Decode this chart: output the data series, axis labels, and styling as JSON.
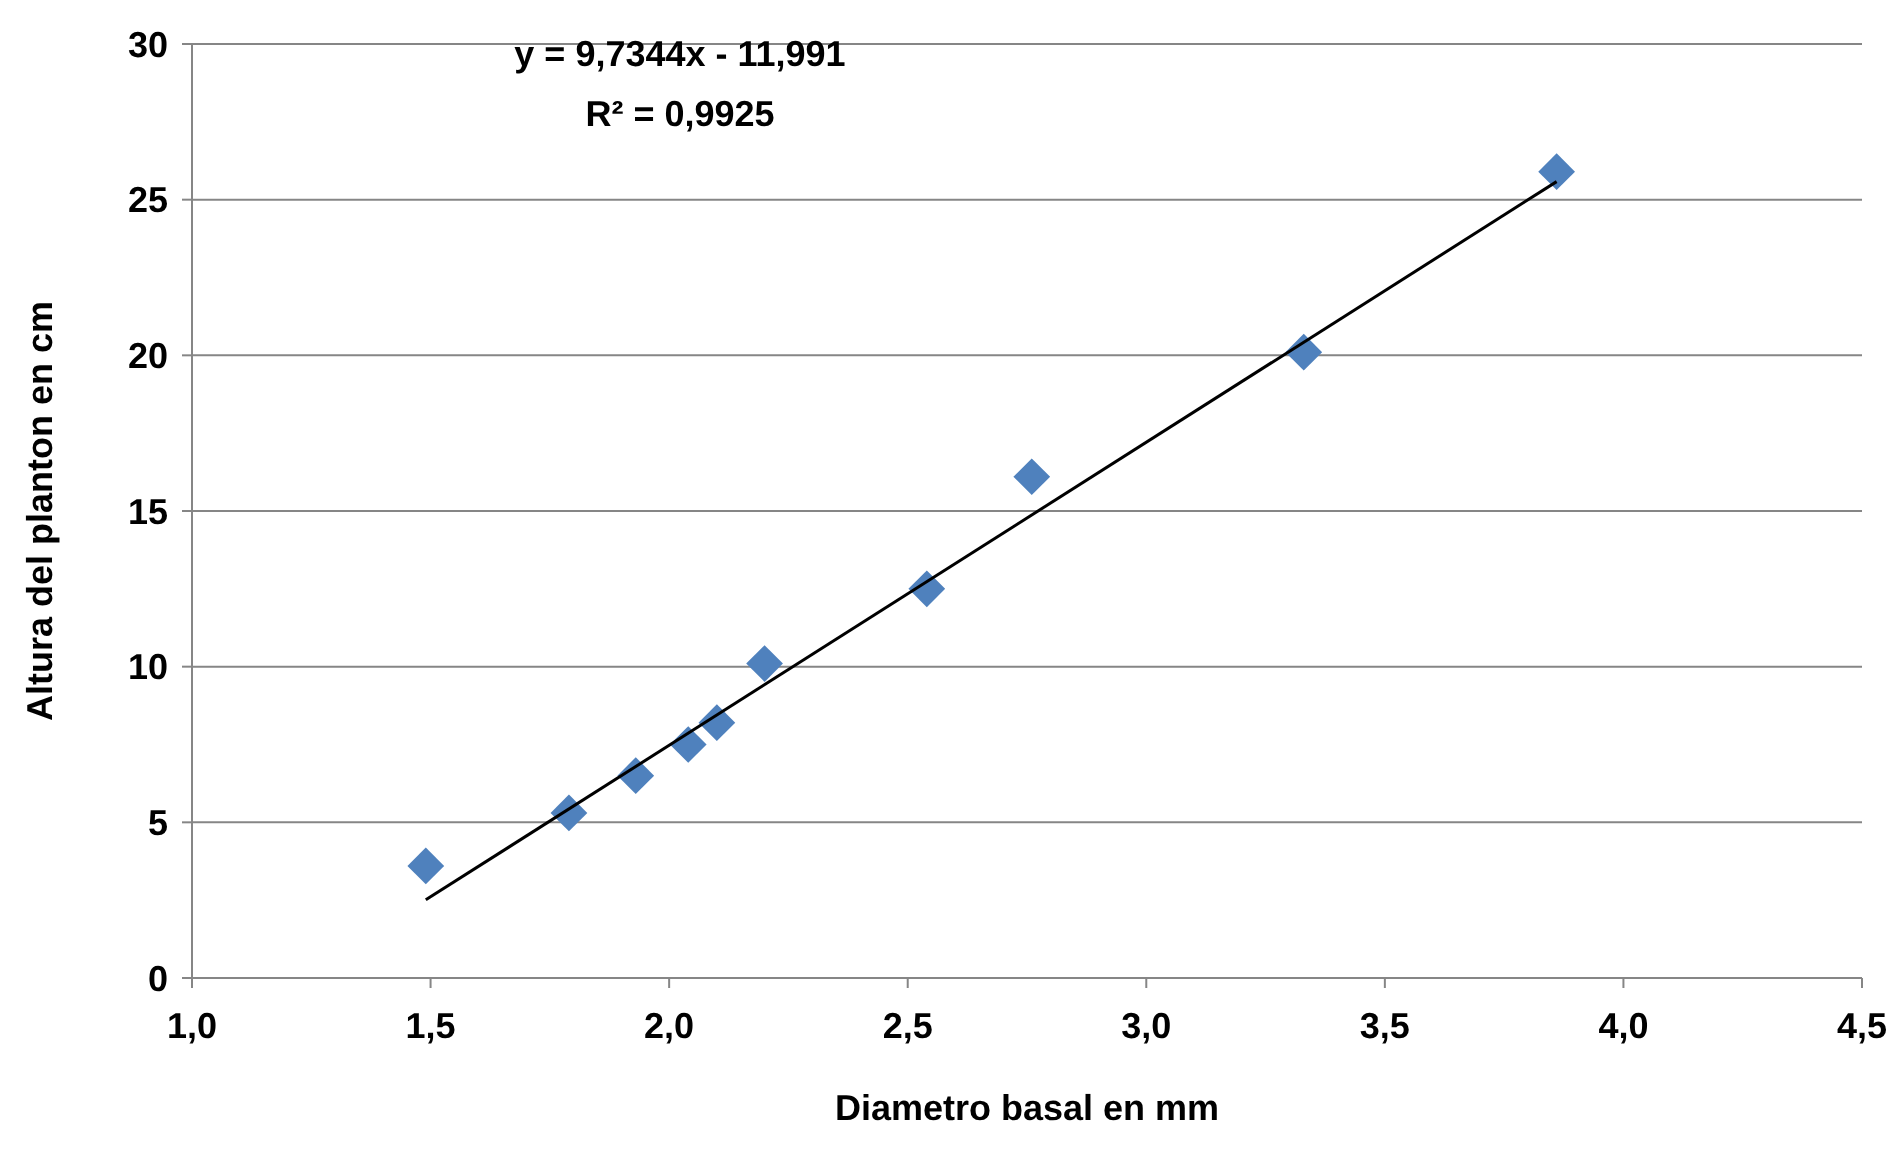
{
  "chart_data": {
    "type": "scatter",
    "xlabel": "Diametro basal en mm",
    "ylabel": "Altura del planton en cm",
    "xlim": [
      1.0,
      4.5
    ],
    "ylim": [
      0,
      30
    ],
    "xticks": [
      {
        "value": 1.0,
        "label": "1,0"
      },
      {
        "value": 1.5,
        "label": "1,5"
      },
      {
        "value": 2.0,
        "label": "2,0"
      },
      {
        "value": 2.5,
        "label": "2,5"
      },
      {
        "value": 3.0,
        "label": "3,0"
      },
      {
        "value": 3.5,
        "label": "3,5"
      },
      {
        "value": 4.0,
        "label": "4,0"
      },
      {
        "value": 4.5,
        "label": "4,5"
      }
    ],
    "yticks": [
      0,
      5,
      10,
      15,
      20,
      25,
      30
    ],
    "grid": "y",
    "marker": "diamond",
    "annotations": [
      "y = 9,7344x - 11,991",
      "R² = 0,9925"
    ],
    "series": [
      {
        "color": "#4f81bd",
        "x": [
          1.49,
          1.79,
          1.93,
          2.04,
          2.1,
          2.2,
          2.54,
          2.76,
          3.33,
          3.86
        ],
        "values": [
          3.6,
          5.3,
          6.5,
          7.5,
          8.2,
          10.1,
          12.5,
          16.1,
          20.1,
          25.9
        ]
      },
      {
        "type": "line",
        "color": "#000000",
        "marker": "none",
        "x": [
          1.49,
          3.86
        ],
        "values": [
          2.51,
          25.58
        ]
      }
    ]
  }
}
